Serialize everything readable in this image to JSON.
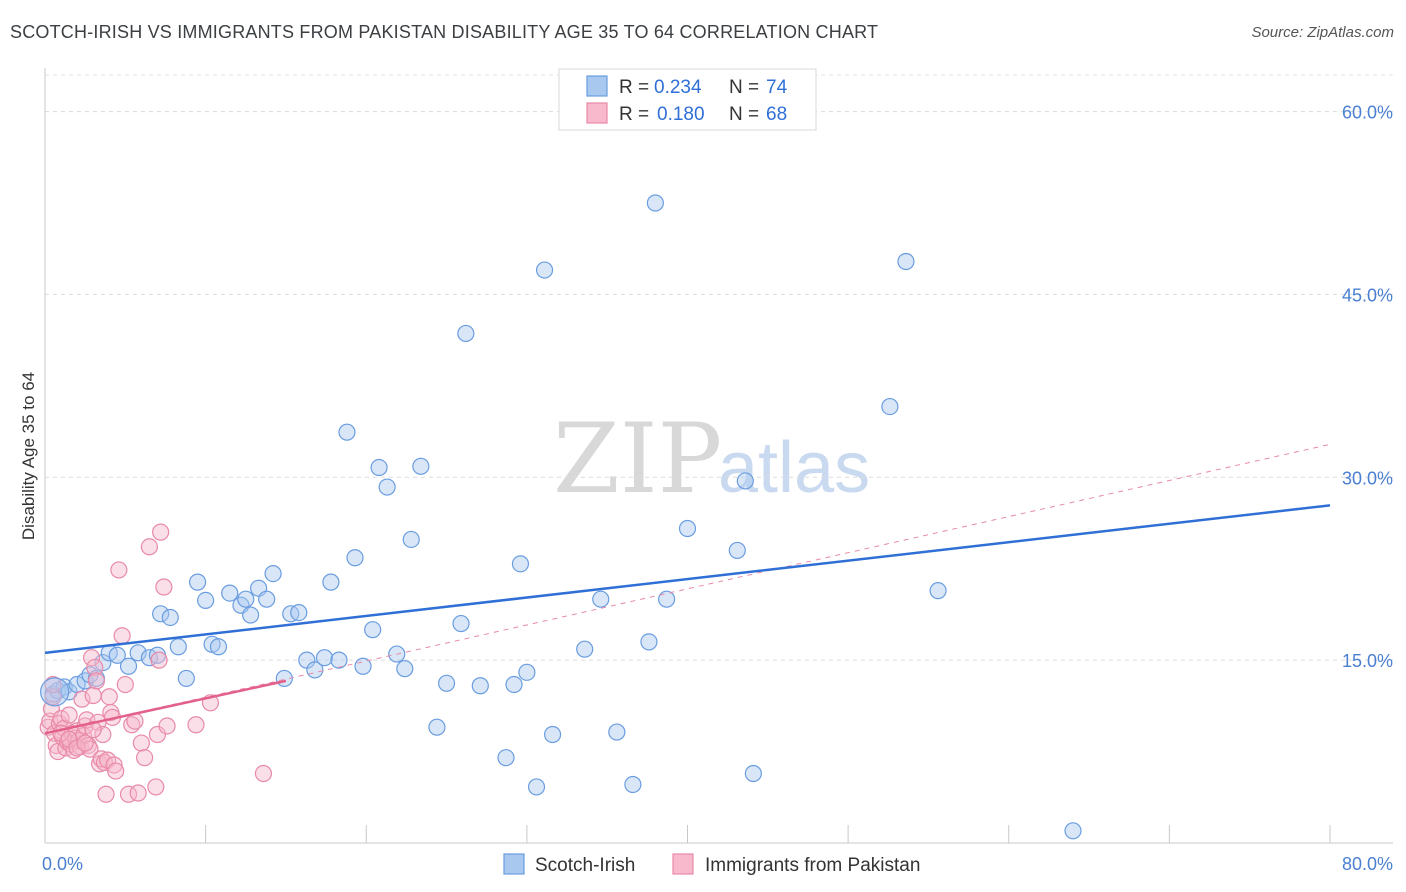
{
  "title": "SCOTCH-IRISH VS IMMIGRANTS FROM PAKISTAN DISABILITY AGE 35 TO 64 CORRELATION CHART",
  "source": "Source: ZipAtlas.com",
  "watermark": {
    "zip": "ZIP",
    "atlas": "atlas"
  },
  "legend": {
    "r_label": "R =",
    "n_label": "N =",
    "rows": [
      {
        "r": "0.234",
        "n": "74",
        "color": "#a8c8f0",
        "border": "#6a9de0"
      },
      {
        "r": "0.180",
        "n": "68",
        "color": "#f7b9cb",
        "border": "#e88aa8"
      }
    ]
  },
  "bottom_legend": [
    {
      "label": "Scotch-Irish",
      "color": "#a8c8f0",
      "border": "#6a9de0"
    },
    {
      "label": "Immigrants from Pakistan",
      "color": "#f7b9cb",
      "border": "#e88aa8"
    }
  ],
  "chart_data": {
    "type": "scatter",
    "title": "SCOTCH-IRISH VS IMMIGRANTS FROM PAKISTAN DISABILITY AGE 35 TO 64 CORRELATION CHART",
    "xlabel": "",
    "ylabel": "Disability Age 35 to 64",
    "xlim": [
      0,
      80
    ],
    "ylim": [
      0,
      63
    ],
    "x_tick_labels": [
      "0.0%",
      "80.0%"
    ],
    "y_ticks": [
      15,
      30,
      45,
      60
    ],
    "y_tick_labels": [
      "15.0%",
      "30.0%",
      "45.0%",
      "60.0%"
    ],
    "grid": true,
    "series": [
      {
        "name": "Scotch-Irish",
        "color": "#a8c8f0",
        "stroke": "#6a9de0",
        "r": 0.234,
        "n": 74,
        "trend": {
          "x": [
            0,
            80
          ],
          "y": [
            15.6,
            27.7
          ],
          "color": "#2f6fd6",
          "style": "solid"
        },
        "points": [
          [
            0.5,
            12.2
          ],
          [
            0.8,
            12.5
          ],
          [
            1.2,
            12.8
          ],
          [
            1.5,
            12.4
          ],
          [
            2.0,
            13.0
          ],
          [
            2.5,
            13.3
          ],
          [
            2.8,
            13.8
          ],
          [
            3.2,
            13.5
          ],
          [
            3.6,
            14.8
          ],
          [
            4.0,
            15.6
          ],
          [
            4.5,
            15.4
          ],
          [
            5.2,
            14.5
          ],
          [
            5.8,
            15.6
          ],
          [
            6.5,
            15.2
          ],
          [
            7.0,
            15.4
          ],
          [
            7.2,
            18.8
          ],
          [
            7.8,
            18.5
          ],
          [
            8.3,
            16.1
          ],
          [
            8.8,
            13.5
          ],
          [
            9.5,
            21.4
          ],
          [
            10.0,
            19.9
          ],
          [
            10.4,
            16.3
          ],
          [
            10.8,
            16.1
          ],
          [
            11.5,
            20.5
          ],
          [
            12.2,
            19.5
          ],
          [
            12.5,
            20.0
          ],
          [
            12.8,
            18.7
          ],
          [
            13.3,
            20.9
          ],
          [
            13.8,
            20.0
          ],
          [
            14.2,
            22.1
          ],
          [
            14.9,
            13.5
          ],
          [
            15.3,
            18.8
          ],
          [
            15.8,
            18.9
          ],
          [
            16.3,
            15.0
          ],
          [
            16.8,
            14.2
          ],
          [
            17.4,
            15.2
          ],
          [
            17.8,
            21.4
          ],
          [
            18.3,
            15.0
          ],
          [
            18.8,
            33.7
          ],
          [
            19.3,
            23.4
          ],
          [
            19.8,
            14.5
          ],
          [
            20.4,
            17.5
          ],
          [
            20.8,
            30.8
          ],
          [
            21.3,
            29.2
          ],
          [
            21.9,
            15.5
          ],
          [
            22.4,
            14.3
          ],
          [
            22.8,
            24.9
          ],
          [
            23.4,
            30.9
          ],
          [
            24.4,
            9.5
          ],
          [
            25.0,
            13.1
          ],
          [
            25.9,
            18.0
          ],
          [
            26.2,
            41.8
          ],
          [
            27.1,
            12.9
          ],
          [
            28.7,
            7.0
          ],
          [
            29.2,
            13.0
          ],
          [
            29.6,
            22.9
          ],
          [
            30.0,
            14.0
          ],
          [
            30.6,
            4.6
          ],
          [
            31.1,
            47.0
          ],
          [
            31.6,
            8.9
          ],
          [
            33.6,
            15.9
          ],
          [
            34.6,
            20.0
          ],
          [
            35.6,
            9.1
          ],
          [
            36.6,
            4.8
          ],
          [
            37.6,
            16.5
          ],
          [
            38.0,
            52.5
          ],
          [
            38.7,
            20.0
          ],
          [
            40.0,
            25.8
          ],
          [
            43.1,
            24.0
          ],
          [
            43.6,
            29.7
          ],
          [
            44.1,
            5.7
          ],
          [
            52.6,
            35.8
          ],
          [
            53.6,
            47.7
          ],
          [
            55.6,
            20.7
          ],
          [
            64.0,
            1.0
          ]
        ]
      },
      {
        "name": "Immigrants from Pakistan",
        "color": "#f7b9cb",
        "stroke": "#e88aa8",
        "r": 0.18,
        "n": 68,
        "trend": {
          "x": [
            0,
            15
          ],
          "y": [
            9.0,
            13.3
          ],
          "color": "#e2608a",
          "style": "solid"
        },
        "trend_extended": {
          "x": [
            0,
            80
          ],
          "y": [
            9.0,
            32.7
          ],
          "color": "#e88aa8",
          "style": "dashed"
        },
        "points": [
          [
            0.2,
            9.5
          ],
          [
            0.3,
            10.0
          ],
          [
            0.4,
            11.0
          ],
          [
            0.5,
            12.0
          ],
          [
            0.6,
            9.0
          ],
          [
            0.7,
            8.0
          ],
          [
            0.8,
            7.5
          ],
          [
            0.9,
            9.8
          ],
          [
            1.0,
            10.2
          ],
          [
            1.1,
            8.7
          ],
          [
            1.2,
            9.4
          ],
          [
            1.3,
            7.8
          ],
          [
            1.4,
            8.3
          ],
          [
            1.5,
            10.5
          ],
          [
            1.6,
            8.1
          ],
          [
            1.7,
            9.0
          ],
          [
            1.8,
            7.6
          ],
          [
            1.9,
            8.6
          ],
          [
            2.0,
            9.2
          ],
          [
            2.1,
            8.4
          ],
          [
            2.2,
            7.9
          ],
          [
            2.3,
            11.8
          ],
          [
            2.4,
            8.8
          ],
          [
            2.5,
            9.6
          ],
          [
            2.6,
            10.1
          ],
          [
            2.7,
            8.0
          ],
          [
            2.8,
            7.7
          ],
          [
            2.9,
            15.2
          ],
          [
            3.0,
            12.1
          ],
          [
            3.1,
            14.4
          ],
          [
            3.2,
            13.3
          ],
          [
            3.3,
            9.9
          ],
          [
            3.4,
            6.5
          ],
          [
            3.5,
            6.9
          ],
          [
            3.6,
            8.9
          ],
          [
            3.7,
            6.6
          ],
          [
            3.8,
            4.0
          ],
          [
            3.9,
            6.8
          ],
          [
            4.0,
            12.0
          ],
          [
            4.1,
            10.7
          ],
          [
            4.2,
            10.3
          ],
          [
            4.3,
            6.4
          ],
          [
            4.4,
            5.9
          ],
          [
            4.6,
            22.4
          ],
          [
            4.8,
            17.0
          ],
          [
            5.0,
            13.0
          ],
          [
            5.2,
            4.0
          ],
          [
            5.4,
            9.7
          ],
          [
            5.6,
            10.0
          ],
          [
            5.8,
            4.1
          ],
          [
            6.0,
            8.2
          ],
          [
            6.2,
            7.0
          ],
          [
            6.5,
            24.3
          ],
          [
            6.9,
            4.6
          ],
          [
            7.0,
            8.9
          ],
          [
            7.1,
            15.0
          ],
          [
            7.2,
            25.5
          ],
          [
            7.4,
            21.0
          ],
          [
            7.6,
            9.6
          ],
          [
            9.4,
            9.7
          ],
          [
            10.3,
            11.5
          ],
          [
            13.6,
            5.7
          ],
          [
            0.5,
            13.0
          ],
          [
            1.0,
            9.0
          ],
          [
            1.5,
            8.5
          ],
          [
            2.0,
            7.8
          ],
          [
            2.5,
            8.2
          ],
          [
            3.0,
            9.3
          ]
        ]
      }
    ]
  }
}
